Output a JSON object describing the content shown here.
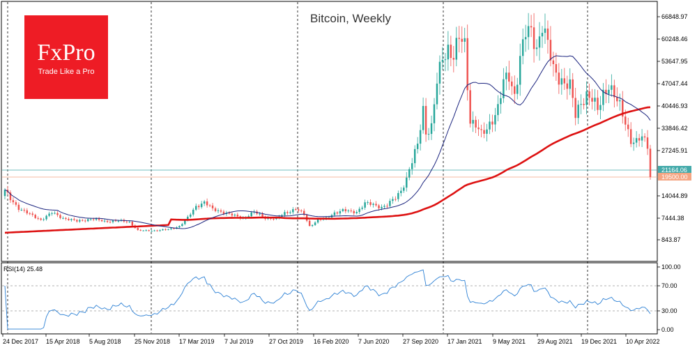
{
  "brand": {
    "name": "FxPro",
    "tagline": "Trade Like a Pro",
    "color": "#ee1c25"
  },
  "colors": {
    "bull": "#26a69a",
    "bear": "#ef5350",
    "ma_slow": "#dd1111",
    "ma_fast": "#1a237e",
    "rsi": "#2a7fd4",
    "hline_cyan": "#44aaaa",
    "hline_salmon": "#f4a582"
  },
  "chart_data": {
    "type": "candlestick",
    "title": "Bitcoin, Weekly",
    "y_axis_labels": [
      "66848.97",
      "60248.46",
      "53647.95",
      "47047.44",
      "40446.93",
      "33846.42",
      "27245.91",
      "21164.06",
      "19500.00",
      "14044.89",
      "7444.38",
      "843.87"
    ],
    "x_axis_labels": [
      "24 Dec 2017",
      "15 Apr 2018",
      "5 Aug 2018",
      "25 Nov 2018",
      "17 Mar 2019",
      "7 Jul 2019",
      "27 Oct 2019",
      "16 Feb 2020",
      "7 Jun 2020",
      "27 Sep 2020",
      "17 Jan 2021",
      "9 May 2021",
      "29 Aug 2021",
      "19 Dec 2021",
      "10 Apr 2022"
    ],
    "ylim": [
      -5000,
      71000
    ],
    "horizontal_levels": [
      {
        "label": "21164.06",
        "value": 21164.06
      },
      {
        "label": "19500.00",
        "value": 19500.0
      }
    ],
    "price_path": [
      [
        0,
        15500
      ],
      [
        2,
        13000
      ],
      [
        5,
        10500
      ],
      [
        9,
        8500
      ],
      [
        13,
        7000
      ],
      [
        17,
        9000
      ],
      [
        21,
        7500
      ],
      [
        26,
        6500
      ],
      [
        31,
        7200
      ],
      [
        36,
        6500
      ],
      [
        41,
        6600
      ],
      [
        45,
        6300
      ],
      [
        48,
        3700
      ],
      [
        51,
        3600
      ],
      [
        55,
        3700
      ],
      [
        59,
        4000
      ],
      [
        63,
        5000
      ],
      [
        66,
        7500
      ],
      [
        69,
        11000
      ],
      [
        72,
        12200
      ],
      [
        75,
        10000
      ],
      [
        78,
        9500
      ],
      [
        82,
        8300
      ],
      [
        86,
        7500
      ],
      [
        90,
        9200
      ],
      [
        94,
        7600
      ],
      [
        98,
        7200
      ],
      [
        101,
        9000
      ],
      [
        105,
        10200
      ],
      [
        108,
        8500
      ],
      [
        110,
        5000
      ],
      [
        113,
        6900
      ],
      [
        116,
        7300
      ],
      [
        119,
        9100
      ],
      [
        122,
        9700
      ],
      [
        125,
        9300
      ],
      [
        127,
        9400
      ],
      [
        130,
        11800
      ],
      [
        133,
        11400
      ],
      [
        136,
        10800
      ],
      [
        138,
        11300
      ],
      [
        141,
        13400
      ],
      [
        143,
        15800
      ],
      [
        145,
        19000
      ],
      [
        147,
        23500
      ],
      [
        149,
        29000
      ],
      [
        151,
        40000
      ],
      [
        152,
        33000
      ],
      [
        154,
        34000
      ],
      [
        156,
        47000
      ],
      [
        158,
        55000
      ],
      [
        160,
        58000
      ],
      [
        162,
        55000
      ],
      [
        164,
        60000
      ],
      [
        166,
        58500
      ],
      [
        167,
        47000
      ],
      [
        168,
        36500
      ],
      [
        170,
        35000
      ],
      [
        172,
        31500
      ],
      [
        174,
        33500
      ],
      [
        176,
        37000
      ],
      [
        178,
        40000
      ],
      [
        180,
        47000
      ],
      [
        182,
        49000
      ],
      [
        184,
        44000
      ],
      [
        186,
        55000
      ],
      [
        188,
        61500
      ],
      [
        190,
        62000
      ],
      [
        192,
        58000
      ],
      [
        194,
        65000
      ],
      [
        196,
        58000
      ],
      [
        198,
        51000
      ],
      [
        200,
        49500
      ],
      [
        202,
        47500
      ],
      [
        204,
        46000
      ],
      [
        206,
        37500
      ],
      [
        208,
        42000
      ],
      [
        210,
        44000
      ],
      [
        212,
        42000
      ],
      [
        214,
        39000
      ],
      [
        216,
        44500
      ],
      [
        218,
        47000
      ],
      [
        220,
        43000
      ],
      [
        222,
        40000
      ],
      [
        224,
        36000
      ],
      [
        226,
        30500
      ],
      [
        228,
        29500
      ],
      [
        230,
        31000
      ],
      [
        232,
        29000
      ],
      [
        233,
        19500
      ]
    ],
    "rsi": {
      "label": "RSI(14) 25.48",
      "period": 14,
      "last": 25.48,
      "ylim": [
        0,
        100
      ],
      "levels": [
        30,
        70
      ],
      "y_axis_labels": [
        "100.00",
        "70.00",
        "30.00",
        "0.00"
      ]
    }
  }
}
